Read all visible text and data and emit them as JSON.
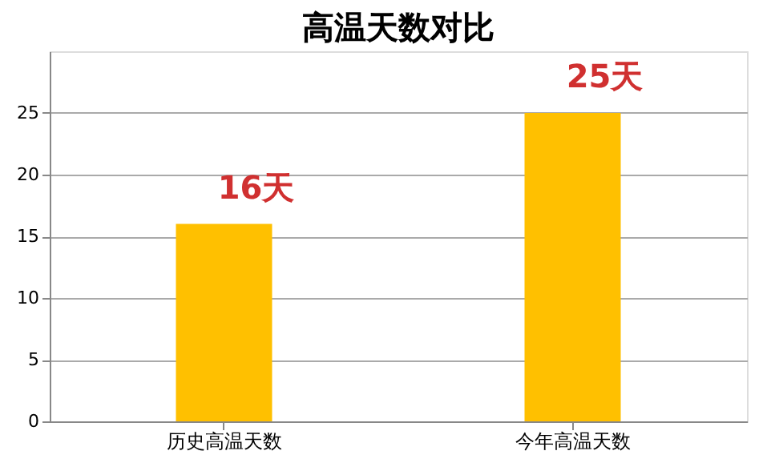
{
  "chart_data": {
    "type": "bar",
    "title": "高温天数对比",
    "categories": [
      "历史高温天数",
      "今年高温天数"
    ],
    "values": [
      16,
      25
    ],
    "value_labels": [
      "16天",
      "25天"
    ],
    "color": "#ffc000",
    "ylim": [
      0,
      30
    ],
    "yticks": [
      0,
      5,
      10,
      15,
      20,
      25
    ],
    "grid": "y"
  }
}
